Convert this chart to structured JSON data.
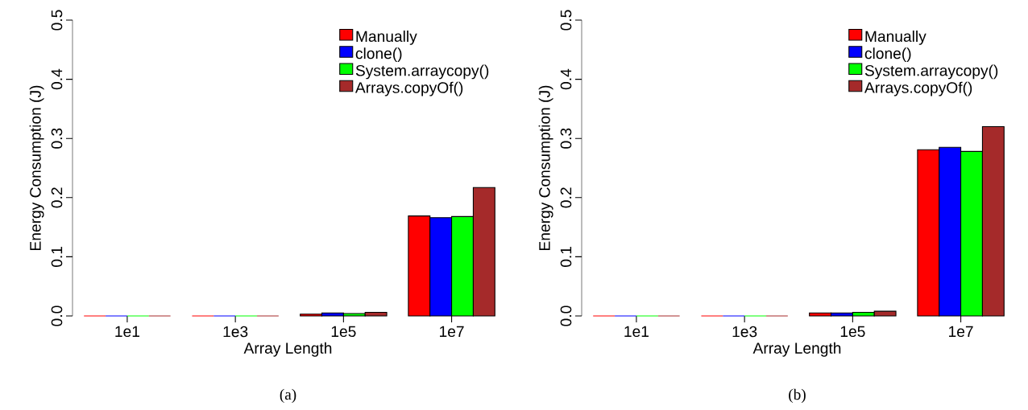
{
  "chart_data": [
    {
      "type": "bar",
      "xlabel": "Array Length",
      "ylabel": "Energy Consumption (J)",
      "annotations": [
        "(a)"
      ],
      "categories": [
        "1e1",
        "1e3",
        "1e5",
        "1e7"
      ],
      "series": [
        {
          "name": "Manually",
          "color": "#ff0000",
          "values": [
            0,
            0,
            0.003,
            0.169
          ]
        },
        {
          "name": "clone()",
          "color": "#0000ff",
          "values": [
            0,
            0,
            0.005,
            0.166
          ]
        },
        {
          "name": "System.arraycopy()",
          "color": "#00ff00",
          "values": [
            0,
            0,
            0.004,
            0.168
          ]
        },
        {
          "name": "Arrays.copyOf()",
          "color": "#a52a2a",
          "values": [
            0,
            0,
            0.006,
            0.217
          ]
        }
      ],
      "ylim": [
        0,
        0.5
      ],
      "yticks": [
        {
          "value": 0,
          "label": "0.0"
        },
        0.1,
        0.2,
        0.3,
        0.4,
        0.5
      ],
      "legend": "top right",
      "grid": false
    },
    {
      "type": "bar",
      "xlabel": "Array Length",
      "ylabel": "Energy Consumption (J)",
      "annotations": [
        "(b)"
      ],
      "categories": [
        "1e1",
        "1e3",
        "1e5",
        "1e7"
      ],
      "series": [
        {
          "name": "Manually",
          "color": "#ff0000",
          "values": [
            0,
            0,
            0.005,
            0.281
          ]
        },
        {
          "name": "clone()",
          "color": "#0000ff",
          "values": [
            0,
            0,
            0.005,
            0.285
          ]
        },
        {
          "name": "System.arraycopy()",
          "color": "#00ff00",
          "values": [
            0,
            0,
            0.006,
            0.278
          ]
        },
        {
          "name": "Arrays.copyOf()",
          "color": "#a52a2a",
          "values": [
            0,
            0,
            0.008,
            0.32
          ]
        }
      ],
      "ylim": [
        0,
        0.5
      ],
      "yticks": [
        {
          "value": 0,
          "label": "0.0"
        },
        0.1,
        0.2,
        0.3,
        0.4,
        0.5
      ],
      "legend": "top right",
      "grid": false
    }
  ]
}
